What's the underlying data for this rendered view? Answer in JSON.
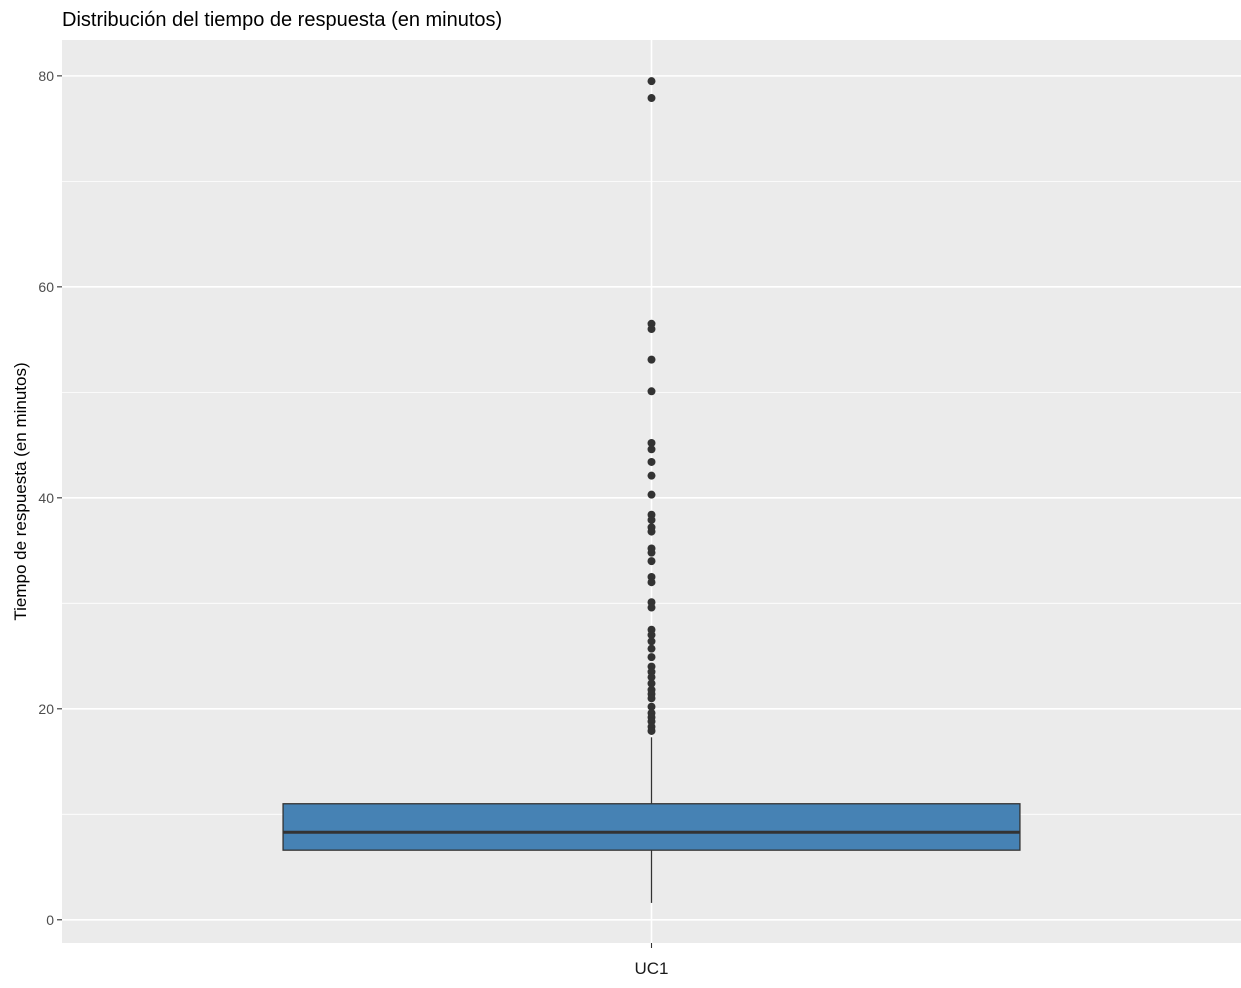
{
  "chart_data": {
    "type": "boxplot",
    "title": "Distribución del tiempo de respuesta (en minutos)",
    "xlabel": "",
    "ylabel": "Tiempo de respuesta (en minutos)",
    "categories": [
      "UC1"
    ],
    "ylim": [
      -2.2,
      83.4
    ],
    "y_ticks": [
      0,
      20,
      40,
      60,
      80
    ],
    "y_minor_ticks": [
      10,
      30,
      50,
      70
    ],
    "grid": true,
    "legend": "none",
    "colors": {
      "panel": "#ebebeb",
      "grid": "#ffffff",
      "box_fill": "#4682b4",
      "box_stroke": "#333333",
      "outlier": "#333333",
      "tick_text": "#4d4d4d"
    },
    "boxes": [
      {
        "category": "UC1",
        "whisker_low": 1.6,
        "q1": 6.6,
        "median": 8.3,
        "q3": 11.0,
        "whisker_high": 17.3,
        "outliers": [
          79.5,
          77.9,
          56.5,
          56.0,
          53.1,
          50.1,
          45.2,
          44.6,
          43.4,
          42.1,
          40.3,
          38.4,
          37.9,
          37.2,
          36.8,
          35.2,
          34.8,
          34.0,
          32.5,
          32.0,
          30.1,
          29.6,
          27.5,
          27.0,
          26.4,
          25.7,
          24.9,
          24.0,
          23.5,
          23.0,
          22.4,
          21.8,
          21.4,
          21.0,
          20.2,
          19.6,
          19.2,
          18.8,
          18.3,
          17.9
        ]
      }
    ]
  }
}
